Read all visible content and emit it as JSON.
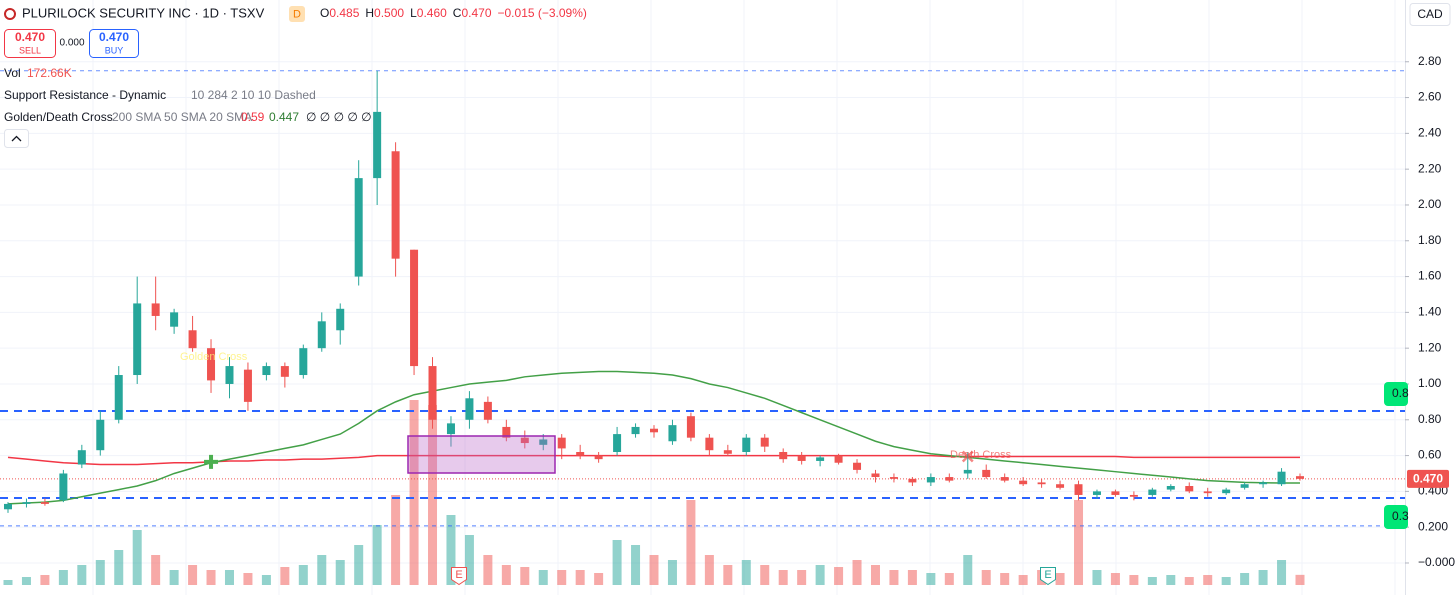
{
  "header": {
    "symbol": "PLURILOCK SECURITY INC · 1D · TSXV",
    "badge": "D",
    "quote": [
      [
        "O",
        "0.485"
      ],
      [
        "H",
        "0.500"
      ],
      [
        "L",
        "0.460"
      ],
      [
        "C",
        "0.470"
      ]
    ],
    "change": "−0.015 (−3.09%)",
    "currency": "CAD"
  },
  "trade": {
    "sell_price": "0.470",
    "sell_label": "SELL",
    "spread": "0.000",
    "buy_price": "0.470",
    "buy_label": "BUY"
  },
  "indicators": [
    {
      "name": "Vol",
      "value": "172.66K"
    },
    {
      "name": "Support Resistance - Dynamic",
      "params": "10 284 2 10 10 Dashed"
    },
    {
      "name": "Golden/Death Cross",
      "params": "200 SMA 50 SMA 20 SMA",
      "values": [
        "0.59",
        "0.447",
        "∅ ∅ ∅ ∅ ∅"
      ]
    }
  ],
  "chart_data": {
    "type": "candlestick",
    "ylim": [
      -0.123,
      3.145
    ],
    "yticks": [
      {
        "value": 0,
        "label": "−0.000"
      },
      {
        "value": 0.2,
        "label": "0.200"
      },
      {
        "value": 0.4,
        "label": "0.400"
      },
      {
        "value": 0.6,
        "label": "0.60"
      },
      {
        "value": 0.8,
        "label": "0.80"
      },
      {
        "value": 1.0,
        "label": "1.00"
      },
      {
        "value": 1.2,
        "label": "1.20"
      },
      {
        "value": 1.4,
        "label": "1.40"
      },
      {
        "value": 1.6,
        "label": "1.60"
      },
      {
        "value": 1.8,
        "label": "1.80"
      },
      {
        "value": 2.0,
        "label": "2.00"
      },
      {
        "value": 2.2,
        "label": "2.20"
      },
      {
        "value": 2.4,
        "label": "2.40"
      },
      {
        "value": 2.6,
        "label": "2.60"
      },
      {
        "value": 2.8,
        "label": "2.80"
      }
    ],
    "grid": true,
    "up_color": "#26a69a",
    "down_color": "#ef5350",
    "ohlc": [
      [
        0.3,
        0.34,
        0.28,
        0.33
      ],
      [
        0.33,
        0.36,
        0.31,
        0.34
      ],
      [
        0.34,
        0.36,
        0.32,
        0.33
      ],
      [
        0.35,
        0.52,
        0.34,
        0.5
      ],
      [
        0.55,
        0.66,
        0.53,
        0.63
      ],
      [
        0.63,
        0.85,
        0.6,
        0.8
      ],
      [
        0.8,
        1.1,
        0.78,
        1.05
      ],
      [
        1.05,
        1.6,
        1.0,
        1.45
      ],
      [
        1.45,
        1.6,
        1.3,
        1.38
      ],
      [
        1.32,
        1.42,
        1.28,
        1.4
      ],
      [
        1.3,
        1.38,
        1.18,
        1.2
      ],
      [
        1.2,
        1.25,
        0.95,
        1.02
      ],
      [
        1.0,
        1.15,
        0.92,
        1.1
      ],
      [
        1.08,
        1.12,
        0.85,
        0.9
      ],
      [
        1.05,
        1.12,
        1.02,
        1.1
      ],
      [
        1.1,
        1.12,
        0.98,
        1.04
      ],
      [
        1.05,
        1.22,
        1.03,
        1.2
      ],
      [
        1.2,
        1.4,
        1.18,
        1.35
      ],
      [
        1.3,
        1.45,
        1.22,
        1.42
      ],
      [
        1.6,
        2.25,
        1.55,
        2.15
      ],
      [
        2.15,
        2.75,
        2.0,
        2.52
      ],
      [
        2.3,
        2.35,
        1.6,
        1.7
      ],
      [
        1.75,
        1.75,
        1.05,
        1.1
      ],
      [
        1.1,
        1.15,
        0.75,
        0.8
      ],
      [
        0.72,
        0.82,
        0.65,
        0.78
      ],
      [
        0.8,
        0.96,
        0.75,
        0.92
      ],
      [
        0.9,
        0.93,
        0.78,
        0.8
      ],
      [
        0.76,
        0.8,
        0.68,
        0.7
      ],
      [
        0.7,
        0.74,
        0.64,
        0.67
      ],
      [
        0.66,
        0.72,
        0.63,
        0.69
      ],
      [
        0.7,
        0.72,
        0.58,
        0.64
      ],
      [
        0.62,
        0.66,
        0.58,
        0.6
      ],
      [
        0.6,
        0.62,
        0.56,
        0.58
      ],
      [
        0.62,
        0.76,
        0.6,
        0.72
      ],
      [
        0.72,
        0.78,
        0.7,
        0.76
      ],
      [
        0.75,
        0.77,
        0.7,
        0.73
      ],
      [
        0.68,
        0.8,
        0.66,
        0.77
      ],
      [
        0.82,
        0.84,
        0.68,
        0.7
      ],
      [
        0.7,
        0.72,
        0.6,
        0.63
      ],
      [
        0.63,
        0.66,
        0.6,
        0.61
      ],
      [
        0.62,
        0.72,
        0.6,
        0.7
      ],
      [
        0.7,
        0.72,
        0.62,
        0.65
      ],
      [
        0.62,
        0.64,
        0.56,
        0.58
      ],
      [
        0.6,
        0.62,
        0.55,
        0.57
      ],
      [
        0.57,
        0.6,
        0.54,
        0.59
      ],
      [
        0.6,
        0.61,
        0.55,
        0.56
      ],
      [
        0.56,
        0.58,
        0.5,
        0.52
      ],
      [
        0.5,
        0.52,
        0.45,
        0.48
      ],
      [
        0.48,
        0.5,
        0.45,
        0.47
      ],
      [
        0.47,
        0.48,
        0.43,
        0.45
      ],
      [
        0.45,
        0.5,
        0.43,
        0.48
      ],
      [
        0.48,
        0.5,
        0.45,
        0.46
      ],
      [
        0.5,
        0.62,
        0.47,
        0.52
      ],
      [
        0.52,
        0.55,
        0.47,
        0.48
      ],
      [
        0.48,
        0.5,
        0.45,
        0.46
      ],
      [
        0.46,
        0.48,
        0.43,
        0.44
      ],
      [
        0.45,
        0.47,
        0.42,
        0.44
      ],
      [
        0.44,
        0.46,
        0.41,
        0.42
      ],
      [
        0.44,
        0.46,
        0.35,
        0.38
      ],
      [
        0.38,
        0.41,
        0.36,
        0.4
      ],
      [
        0.4,
        0.41,
        0.37,
        0.38
      ],
      [
        0.38,
        0.4,
        0.35,
        0.37
      ],
      [
        0.38,
        0.42,
        0.37,
        0.41
      ],
      [
        0.41,
        0.44,
        0.4,
        0.43
      ],
      [
        0.43,
        0.45,
        0.39,
        0.4
      ],
      [
        0.4,
        0.42,
        0.37,
        0.39
      ],
      [
        0.39,
        0.42,
        0.38,
        0.41
      ],
      [
        0.42,
        0.45,
        0.41,
        0.44
      ],
      [
        0.44,
        0.46,
        0.42,
        0.45
      ],
      [
        0.44,
        0.53,
        0.43,
        0.51
      ],
      [
        0.485,
        0.5,
        0.46,
        0.47
      ]
    ],
    "volume": [
      85000,
      136000,
      170000,
      255000,
      340000,
      425000,
      595000,
      935000,
      510000,
      255000,
      340000,
      255000,
      255000,
      204000,
      170000,
      306000,
      340000,
      510000,
      425000,
      680000,
      1020000,
      1530000,
      3145000,
      3060000,
      1190000,
      850000,
      510000,
      340000,
      306000,
      255000,
      255000,
      255000,
      204000,
      765000,
      680000,
      510000,
      425000,
      1445000,
      510000,
      340000,
      425000,
      340000,
      255000,
      255000,
      340000,
      306000,
      425000,
      340000,
      255000,
      255000,
      204000,
      204000,
      510000,
      255000,
      204000,
      170000,
      255000,
      204000,
      1445000,
      255000,
      204000,
      170000,
      136000,
      170000,
      136000,
      170000,
      136000,
      204000,
      255000,
      425000,
      172660
    ],
    "sma200": [
      0.59,
      0.58,
      0.57,
      0.56,
      0.555,
      0.55,
      0.55,
      0.55,
      0.555,
      0.56,
      0.56,
      0.565,
      0.57,
      0.57,
      0.575,
      0.575,
      0.58,
      0.58,
      0.585,
      0.59,
      0.6,
      0.6,
      0.6,
      0.6,
      0.6,
      0.6,
      0.6,
      0.6,
      0.6,
      0.6,
      0.6,
      0.6,
      0.6,
      0.6,
      0.6,
      0.6,
      0.6,
      0.6,
      0.6,
      0.6,
      0.6,
      0.6,
      0.6,
      0.6,
      0.6,
      0.6,
      0.6,
      0.6,
      0.6,
      0.6,
      0.6,
      0.595,
      0.595,
      0.595,
      0.595,
      0.595,
      0.595,
      0.595,
      0.595,
      0.595,
      0.595,
      0.59,
      0.59,
      0.59,
      0.59,
      0.59,
      0.59,
      0.59,
      0.59,
      0.59,
      0.59
    ],
    "sma50": [
      0.33,
      0.335,
      0.34,
      0.35,
      0.37,
      0.39,
      0.41,
      0.43,
      0.46,
      0.5,
      0.53,
      0.56,
      0.58,
      0.6,
      0.62,
      0.64,
      0.66,
      0.69,
      0.72,
      0.78,
      0.85,
      0.9,
      0.94,
      0.96,
      0.98,
      1.0,
      1.01,
      1.02,
      1.04,
      1.05,
      1.06,
      1.065,
      1.07,
      1.07,
      1.065,
      1.06,
      1.05,
      1.03,
      1.0,
      0.98,
      0.95,
      0.92,
      0.88,
      0.84,
      0.8,
      0.76,
      0.72,
      0.68,
      0.65,
      0.63,
      0.61,
      0.6,
      0.59,
      0.58,
      0.57,
      0.56,
      0.55,
      0.54,
      0.53,
      0.52,
      0.51,
      0.5,
      0.49,
      0.48,
      0.47,
      0.46,
      0.455,
      0.45,
      0.448,
      0.447,
      0.447
    ],
    "levels": [
      2.75,
      0.849,
      0.363,
      0.207
    ],
    "last_label": "0.470",
    "level_badges": [
      "0.8",
      "0.3"
    ],
    "golden_label": "Golden Cross",
    "death_label": "Death Cross",
    "events": [
      "E",
      "E"
    ]
  }
}
